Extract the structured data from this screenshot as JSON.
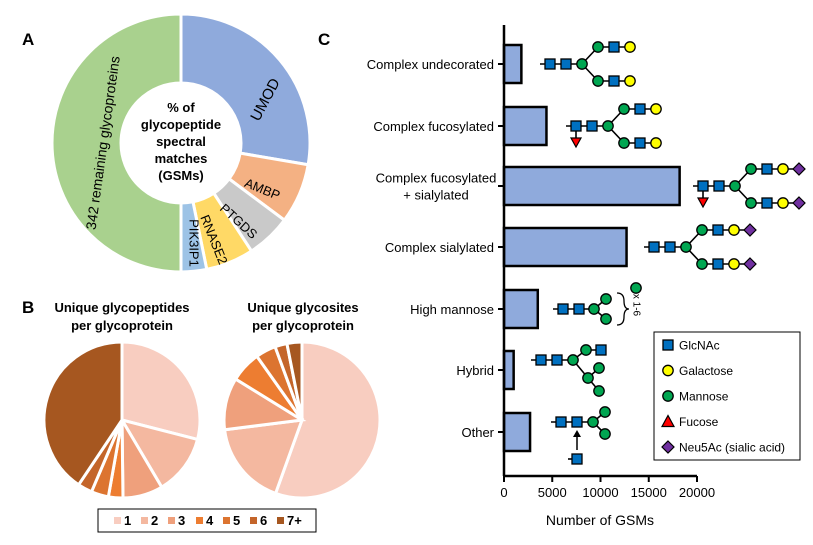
{
  "panel_labels": {
    "a": "A",
    "b": "B",
    "c": "C"
  },
  "chart_data": [
    {
      "type": "pie",
      "variant": "donut",
      "center_label": [
        "% of",
        "glycopeptide",
        "spectral",
        "matches",
        "(GSMs)"
      ],
      "categories": [
        "UMOD",
        "AMBP",
        "PTGDS",
        "RNASE2",
        "PIK3IP1",
        "342 remaining glycoproteins"
      ],
      "values": [
        27.7,
        7.5,
        5.6,
        6.0,
        3.2,
        50.0
      ],
      "colors": [
        "#8faadc",
        "#f4b183",
        "#c9c9c9",
        "#ffd966",
        "#9dc3e6",
        "#a9d18e"
      ]
    },
    {
      "type": "pie",
      "title": [
        "Unique glycopeptides",
        "per glycoprotein"
      ],
      "categories": [
        "1",
        "2",
        "3",
        "4",
        "5",
        "6",
        "7+"
      ],
      "values": [
        29,
        12.5,
        8.3,
        3,
        3.6,
        3,
        40.6
      ],
      "colors": [
        "#f8cdc0",
        "#f4b8a0",
        "#efa07c",
        "#ed7d31",
        "#dc7430",
        "#c4652a",
        "#a65720"
      ]
    },
    {
      "type": "pie",
      "title": [
        "Unique glycosites",
        "per glycoprotein"
      ],
      "categories": [
        "1",
        "2",
        "3",
        "4",
        "5",
        "6",
        "7+"
      ],
      "values": [
        55.5,
        17.5,
        10.8,
        6.4,
        4.2,
        2.5,
        3.1
      ],
      "colors": [
        "#f8cdc0",
        "#f4b8a0",
        "#efa07c",
        "#ed7d31",
        "#dc7430",
        "#c4652a",
        "#a65720"
      ],
      "legend": {
        "placement": "bottom",
        "entries": [
          "1",
          "2",
          "3",
          "4",
          "5",
          "6",
          "7+"
        ]
      }
    },
    {
      "type": "bar",
      "orientation": "horizontal",
      "categories": [
        "Complex undecorated",
        "Complex fucosylated",
        "Complex fucosylated\n+ sialylated",
        "Complex sialylated",
        "High mannose",
        "Hybrid",
        "Other"
      ],
      "category_lines": [
        [
          "Complex undecorated"
        ],
        [
          "Complex fucosylated"
        ],
        [
          "Complex fucosylated",
          "+ sialylated"
        ],
        [
          "Complex sialylated"
        ],
        [
          "High mannose"
        ],
        [
          "Hybrid"
        ],
        [
          "Other"
        ]
      ],
      "values": [
        1800,
        4400,
        18200,
        12700,
        3500,
        1000,
        2700
      ],
      "bar_color": "#8faadc",
      "xlabel": "Number of  GSMs",
      "xlim": [
        0,
        20000
      ],
      "xticks": [
        "0",
        "5000",
        "10000",
        "15000",
        "20000"
      ],
      "xtick_values": [
        0,
        5000,
        10000,
        15000,
        20000
      ],
      "annotation": "x 1-6",
      "glycan_legend": {
        "placement": "bottom-right",
        "entries": [
          {
            "label": "GlcNAc",
            "shape": "square",
            "color": "#0070c0"
          },
          {
            "label": "Galactose",
            "shape": "circle",
            "color": "#ffff00"
          },
          {
            "label": "Mannose",
            "shape": "circle",
            "color": "#00a651"
          },
          {
            "label": "Fucose",
            "shape": "triangle",
            "color": "#ff0000"
          },
          {
            "label": "Neu5Ac (sialic acid)",
            "shape": "diamond",
            "color": "#7030a0"
          }
        ]
      }
    }
  ]
}
